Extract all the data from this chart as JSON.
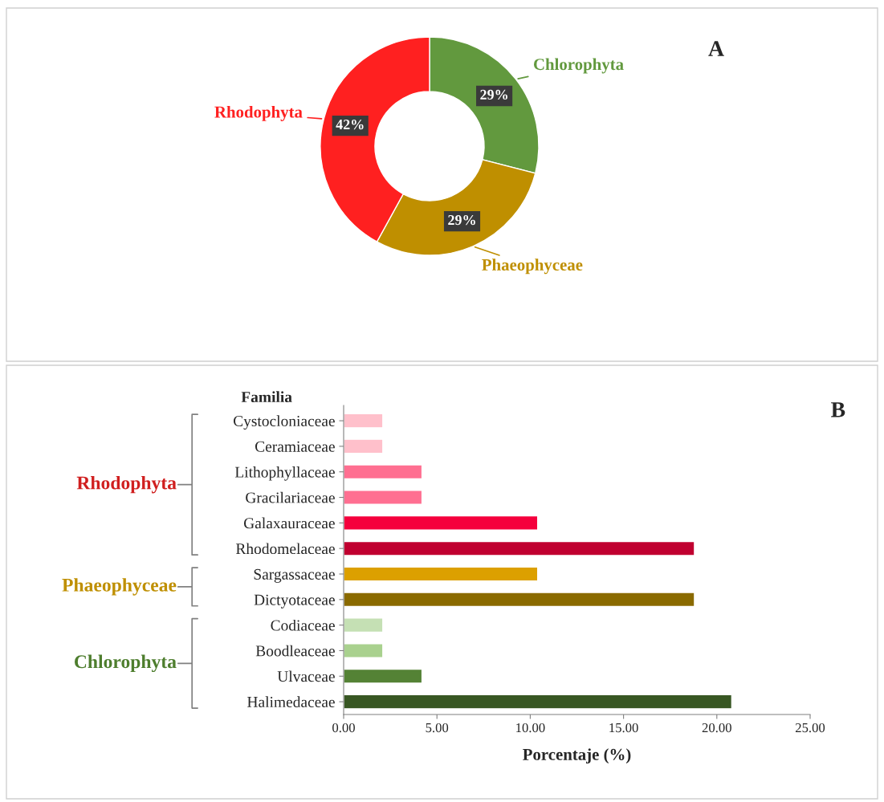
{
  "chart_data": [
    {
      "type": "donut",
      "title": "A",
      "categories": [
        "Chlorophyta",
        "Phaeophyceae",
        "Rhodophyta"
      ],
      "values": [
        29,
        29,
        42
      ],
      "colors": [
        "#62993e",
        "#bf8f00",
        "#ff2020"
      ],
      "value_labels": [
        "29%",
        "29%",
        "42%"
      ]
    },
    {
      "type": "bar",
      "orientation": "horizontal",
      "title": "B",
      "ylabel": "Familia",
      "xlabel": "Porcentaje (%)",
      "categories": [
        "Cystocloniaceae",
        "Ceramiaceae",
        "Lithophyllaceae",
        "Gracilariaceae",
        "Galaxauraceae",
        "Rhodomelaceae",
        "Sargassaceae",
        "Dictyotaceae",
        "Codiaceae",
        "Boodleaceae",
        "Ulvaceae",
        "Halimedaceae"
      ],
      "values": [
        2.1,
        2.1,
        4.2,
        4.2,
        10.4,
        18.8,
        10.4,
        18.8,
        2.1,
        2.1,
        4.2,
        20.8
      ],
      "colors": [
        "#ffc0cb",
        "#ffc0cb",
        "#ff6f91",
        "#ff6f91",
        "#f5003c",
        "#c00030",
        "#dca000",
        "#8a6a00",
        "#c5e0b4",
        "#a9d18e",
        "#548235",
        "#385723"
      ],
      "xlim": [
        0,
        25
      ],
      "xticks": [
        {
          "value": 0,
          "label": "0.00"
        },
        {
          "value": 5,
          "label": "5.00"
        },
        {
          "value": 10,
          "label": "10.00"
        },
        {
          "value": 15,
          "label": "15.00"
        },
        {
          "value": 20,
          "label": "20.00"
        },
        {
          "value": 25,
          "label": "25.00"
        }
      ],
      "annotations": [
        "Rhodophyta",
        "Phaeophyceae",
        "Chlorophyta"
      ]
    }
  ]
}
